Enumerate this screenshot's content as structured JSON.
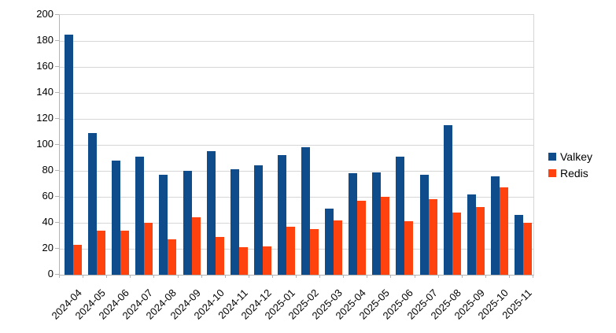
{
  "chart_data": {
    "type": "bar",
    "title": "",
    "xlabel": "",
    "ylabel": "",
    "categories": [
      "2024-04",
      "2024-05",
      "2024-06",
      "2024-07",
      "2024-08",
      "2024-09",
      "2024-10",
      "2024-11",
      "2024-12",
      "2025-01",
      "2025-02",
      "2025-03",
      "2025-04",
      "2025-05",
      "2025-06",
      "2025-07",
      "2025-08",
      "2025-09",
      "2025-10",
      "2025-11"
    ],
    "series": [
      {
        "name": "Valkey",
        "color": "#0E4C8C",
        "values": [
          185,
          109,
          88,
          91,
          77,
          80,
          95,
          81,
          84,
          92,
          98,
          51,
          78,
          79,
          91,
          77,
          115,
          62,
          76,
          46
        ]
      },
      {
        "name": "Redis",
        "color": "#FF420E",
        "values": [
          23,
          34,
          34,
          40,
          27,
          44,
          29,
          21,
          22,
          37,
          35,
          42,
          57,
          60,
          41,
          58,
          48,
          52,
          67,
          40
        ]
      }
    ],
    "ylim": [
      0,
      200
    ],
    "ytick_step": 20,
    "grid": true,
    "legend_position": "right",
    "colors": {
      "gridline": "#d6d6d6",
      "axis": "#b3b3b3",
      "text": "#000000",
      "background": "#ffffff"
    }
  }
}
